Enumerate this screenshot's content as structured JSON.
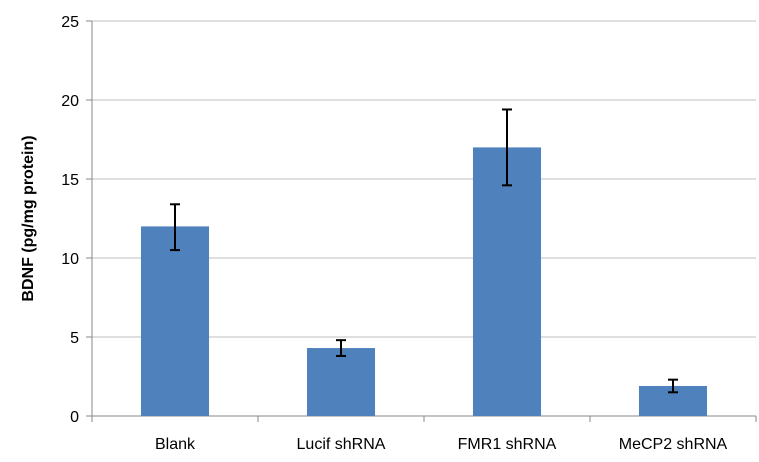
{
  "chart_data": {
    "type": "bar",
    "title": "",
    "xlabel": "",
    "ylabel": "BDNF (pg/mg protein)",
    "ylim": [
      0,
      25
    ],
    "yticks": [
      0,
      5,
      10,
      15,
      20,
      25
    ],
    "grid": true,
    "legend": "none",
    "categories": [
      "Blank",
      "Lucif shRNA",
      "FMR1 shRNA",
      "MeCP2 shRNA"
    ],
    "series": [
      {
        "values": [
          12.0,
          4.3,
          17.0,
          1.9
        ],
        "error_low": [
          10.5,
          3.8,
          14.6,
          1.5
        ],
        "error_high": [
          13.4,
          4.8,
          19.4,
          2.3
        ],
        "color": "#4f81bd"
      }
    ],
    "colors": {
      "bar": "#4f81bd",
      "grid": "#bfbfbf",
      "axis": "#888888",
      "error_bar": "#000000"
    }
  }
}
